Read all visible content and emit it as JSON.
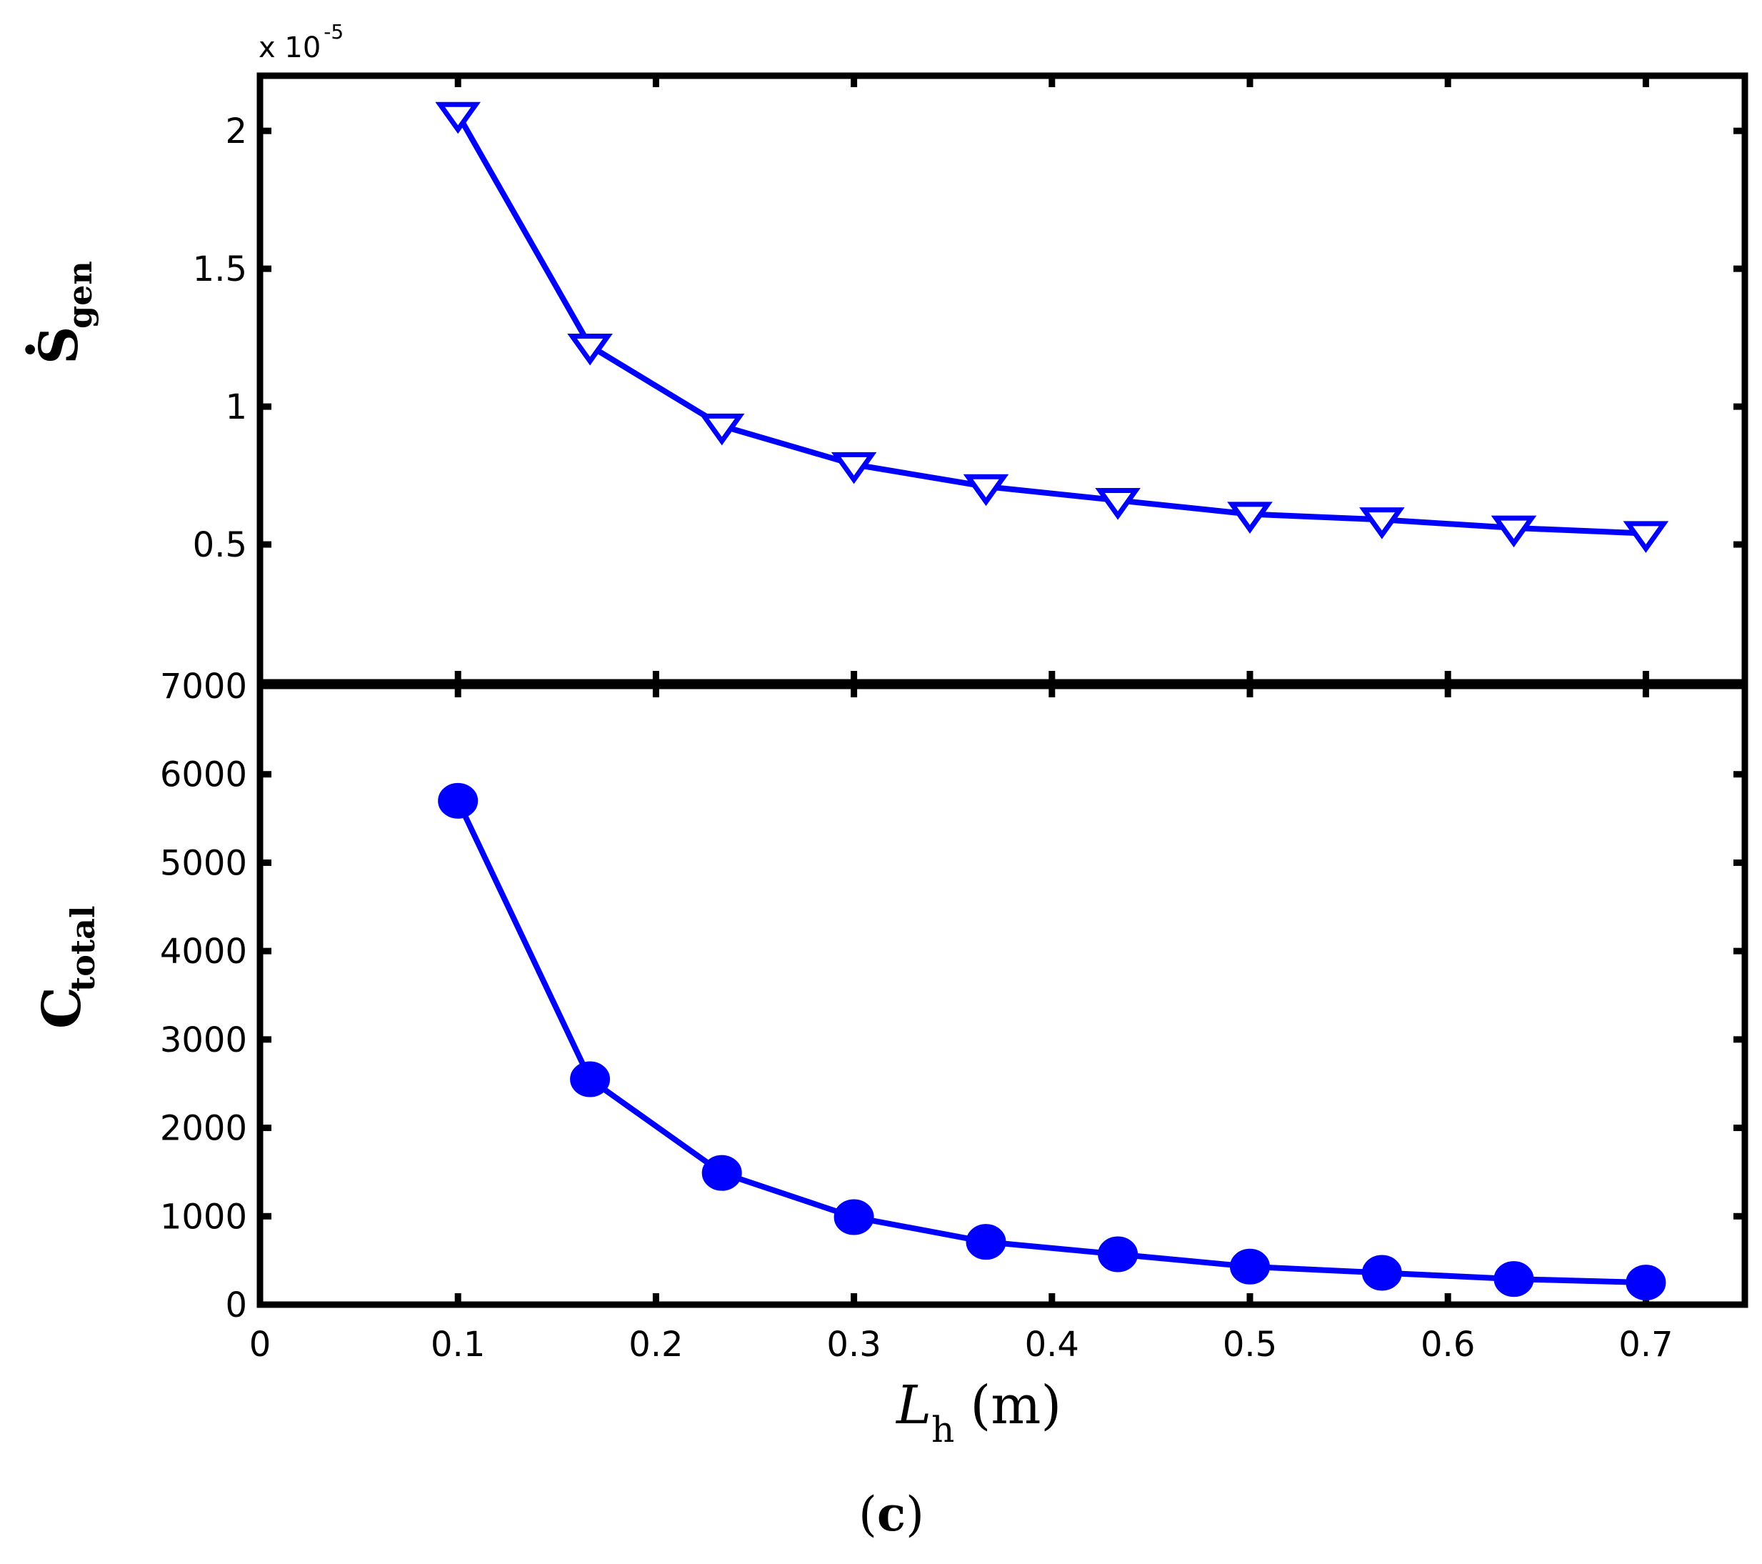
{
  "figure": {
    "panel_label_open": "(",
    "panel_label_letter": "c",
    "panel_label_close": ")",
    "line_color": "#0000ff"
  },
  "chart_data": [
    {
      "type": "line",
      "marker": "triangle-down-open",
      "x": [
        0.1,
        0.1667,
        0.2333,
        0.3,
        0.3667,
        0.4333,
        0.5,
        0.5667,
        0.6333,
        0.7
      ],
      "y": [
        2.06,
        1.22,
        0.93,
        0.79,
        0.71,
        0.66,
        0.61,
        0.59,
        0.56,
        0.54
      ],
      "ylabel": "S",
      "ylabel_sub": "gen",
      "ylabel_dot": "·",
      "y_multiplier_text": "x 10",
      "y_multiplier_exp": "-5",
      "ylim": [
        0.0,
        2.2
      ],
      "xlim": [
        0,
        0.75
      ],
      "yticks": [
        0.5,
        1,
        1.5,
        2
      ],
      "ytick_labels": [
        "0.5",
        "1",
        "1.5",
        "2"
      ],
      "xticks": [
        0.1,
        0.2,
        0.3,
        0.4,
        0.5,
        0.6,
        0.7
      ],
      "grid": false
    },
    {
      "type": "line",
      "marker": "circle-filled",
      "x": [
        0.1,
        0.1667,
        0.2333,
        0.3,
        0.3667,
        0.4333,
        0.5,
        0.5667,
        0.6333,
        0.7
      ],
      "y": [
        5700,
        2550,
        1490,
        990,
        710,
        570,
        430,
        360,
        290,
        250
      ],
      "ylabel": "C",
      "ylabel_sub": "total",
      "ylim": [
        0,
        7000
      ],
      "xlim": [
        0,
        0.75
      ],
      "yticks": [
        0,
        1000,
        2000,
        3000,
        4000,
        5000,
        6000,
        7000
      ],
      "ytick_labels": [
        "0",
        "1000",
        "2000",
        "3000",
        "4000",
        "5000",
        "6000",
        "7000"
      ],
      "xticks": [
        0,
        0.1,
        0.2,
        0.3,
        0.4,
        0.5,
        0.6,
        0.7
      ],
      "xtick_labels": [
        "0",
        "0.1",
        "0.2",
        "0.3",
        "0.4",
        "0.5",
        "0.6",
        "0.7"
      ],
      "xlabel": "L",
      "xlabel_sub": "h",
      "xlabel_unit": "(m)",
      "grid": false
    }
  ]
}
